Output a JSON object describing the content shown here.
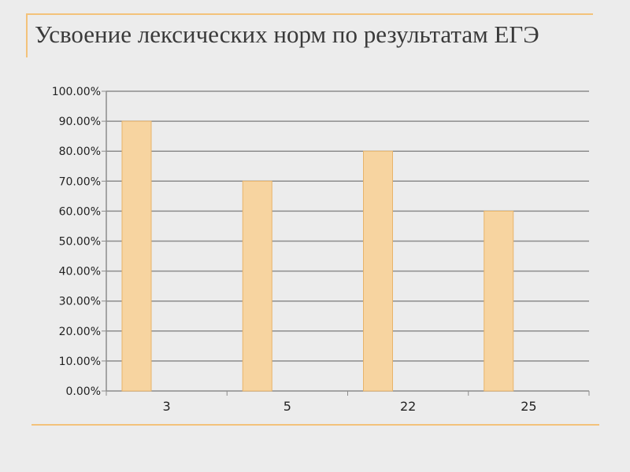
{
  "slide": {
    "title": "Усвоение лексических норм по результатам ЕГЭ"
  },
  "colors": {
    "background": "#ececec",
    "accent_rule": "#f3c27a",
    "bar_fill": "#f7d4a0",
    "bar_stroke": "#e8b46a",
    "gridline": "#8c8c8c",
    "title_text": "#3a3a3a"
  },
  "chart_data": {
    "type": "bar",
    "title": "",
    "xlabel": "",
    "ylabel": "",
    "categories": [
      "3",
      "5",
      "22",
      "25"
    ],
    "values": [
      0.9,
      0.7,
      0.8,
      0.6
    ],
    "ylim": [
      0,
      1
    ],
    "y_ticks": [
      "0.00%",
      "10.00%",
      "20.00%",
      "30.00%",
      "40.00%",
      "50.00%",
      "60.00%",
      "70.00%",
      "80.00%",
      "90.00%",
      "100.00%"
    ],
    "grid": true,
    "legend": "none"
  }
}
